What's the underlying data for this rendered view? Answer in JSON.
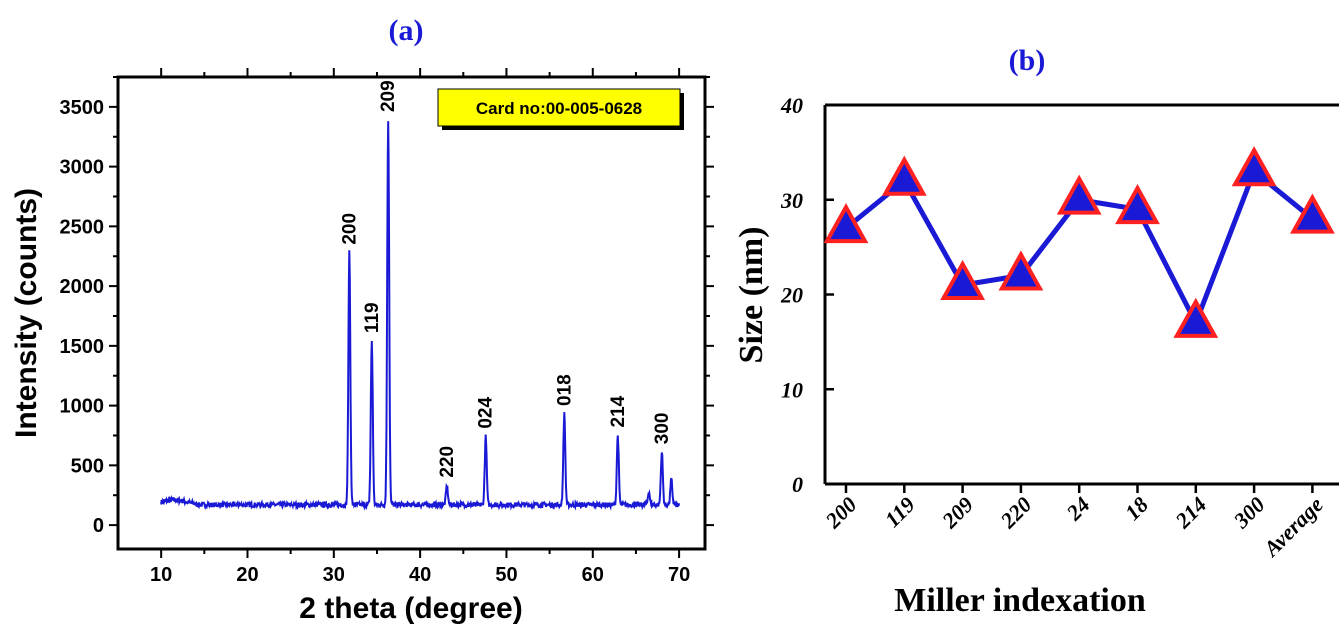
{
  "chart_data": [
    {
      "type": "line",
      "panel_label": "(a)",
      "xlabel": "2 theta (degree)",
      "ylabel": "Intensity (counts)",
      "xlim": [
        5,
        73
      ],
      "ylim": [
        -200,
        3750
      ],
      "xticks": [
        10,
        20,
        30,
        40,
        50,
        60,
        70
      ],
      "yticks": [
        0,
        500,
        1000,
        1500,
        2000,
        2500,
        3000,
        3500
      ],
      "series": [
        {
          "color": "#1a1ad6",
          "baseline": 170,
          "peaks": [
            {
              "x": 31.8,
              "y": 2280,
              "label": "200"
            },
            {
              "x": 34.4,
              "y": 1540,
              "label": "119"
            },
            {
              "x": 36.3,
              "y": 3390,
              "label": "209"
            },
            {
              "x": 43.1,
              "y": 330,
              "label": "220"
            },
            {
              "x": 47.6,
              "y": 740,
              "label": "024"
            },
            {
              "x": 56.7,
              "y": 930,
              "label": "018"
            },
            {
              "x": 62.9,
              "y": 750,
              "label": "214"
            },
            {
              "x": 66.5,
              "y": 280,
              "label": ""
            },
            {
              "x": 68.0,
              "y": 610,
              "label": "300"
            },
            {
              "x": 69.1,
              "y": 380,
              "label": ""
            }
          ],
          "x_range": [
            10,
            70
          ]
        }
      ],
      "annotation": "Card no:00-005-0628",
      "annotation_color": "#ffff00"
    },
    {
      "type": "line",
      "panel_label": "(b)",
      "xlabel": "Miller indexation",
      "ylabel": "Size (nm)",
      "ylim": [
        0,
        40
      ],
      "yticks": [
        0,
        10,
        20,
        30,
        40
      ],
      "categories": [
        "200",
        "119",
        "209",
        "220",
        "24",
        "18",
        "214",
        "300",
        "Average"
      ],
      "series": [
        {
          "values": [
            27,
            32,
            21,
            22,
            30,
            29,
            17,
            33,
            28
          ],
          "line_color": "#1a1ad6",
          "marker": "triangle",
          "marker_fill": "#1a1ad6",
          "marker_edge": "#ff2020"
        }
      ]
    }
  ]
}
